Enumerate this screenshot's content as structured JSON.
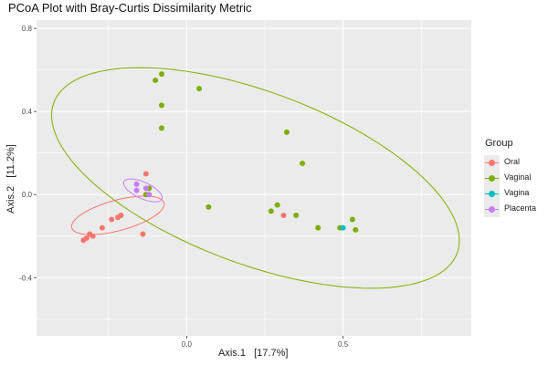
{
  "chart_data": {
    "type": "scatter",
    "title": "PCoA Plot with Bray-Curtis Dissimilarity Metric",
    "xlabel": "Axis.1   [17.7%]",
    "ylabel": "Axis.2   [11.2%]",
    "xlim": [
      -0.48,
      0.91
    ],
    "ylim": [
      -0.68,
      0.84
    ],
    "x_ticks": [
      0.0,
      0.5
    ],
    "x_tick_labels": [
      "0.0",
      "0.5"
    ],
    "y_ticks": [
      -0.4,
      0.0,
      0.4,
      0.8
    ],
    "y_tick_labels": [
      "-0.4",
      "0.0",
      "0.4",
      "0.8"
    ],
    "grid": true,
    "legend_title": "Group",
    "legend_position": "right",
    "colors": {
      "Oral": "#f8766d",
      "Vaginal": "#7cae00",
      "Vagina": "#00bfc4",
      "Placenta": "#c77cff"
    },
    "series": [
      {
        "name": "Oral",
        "x": [
          -0.33,
          -0.32,
          -0.31,
          -0.3,
          -0.27,
          -0.24,
          -0.22,
          -0.21,
          -0.14,
          -0.13,
          -0.13,
          0.31
        ],
        "y": [
          -0.22,
          -0.21,
          -0.19,
          -0.2,
          -0.16,
          -0.12,
          -0.11,
          -0.1,
          -0.19,
          0.1,
          0.0,
          -0.1
        ]
      },
      {
        "name": "Vaginal",
        "x": [
          -0.1,
          -0.08,
          -0.08,
          -0.08,
          0.04,
          0.07,
          0.27,
          0.29,
          0.32,
          0.35,
          0.37,
          0.42,
          0.49,
          0.53,
          0.54,
          -0.13,
          -0.12
        ],
        "y": [
          0.55,
          0.58,
          0.43,
          0.32,
          0.51,
          -0.06,
          -0.08,
          -0.05,
          0.3,
          -0.1,
          0.15,
          -0.16,
          -0.16,
          -0.12,
          -0.17,
          0.0,
          0.03
        ]
      },
      {
        "name": "Vagina",
        "x": [
          0.5
        ],
        "y": [
          -0.16
        ]
      },
      {
        "name": "Placenta",
        "x": [
          -0.16,
          -0.16,
          -0.12,
          -0.13
        ],
        "y": [
          0.05,
          0.02,
          0.0,
          0.03
        ]
      }
    ],
    "ellipses": [
      {
        "name": "Vaginal",
        "cx": 0.22,
        "cy": 0.08,
        "rx": 0.75,
        "ry": 0.38,
        "angle_deg": -35
      },
      {
        "name": "Oral",
        "cx": -0.22,
        "cy": -0.1,
        "rx": 0.16,
        "ry": 0.07,
        "angle_deg": 25
      },
      {
        "name": "Placenta",
        "cx": -0.14,
        "cy": 0.02,
        "rx": 0.075,
        "ry": 0.035,
        "angle_deg": -40
      }
    ]
  }
}
